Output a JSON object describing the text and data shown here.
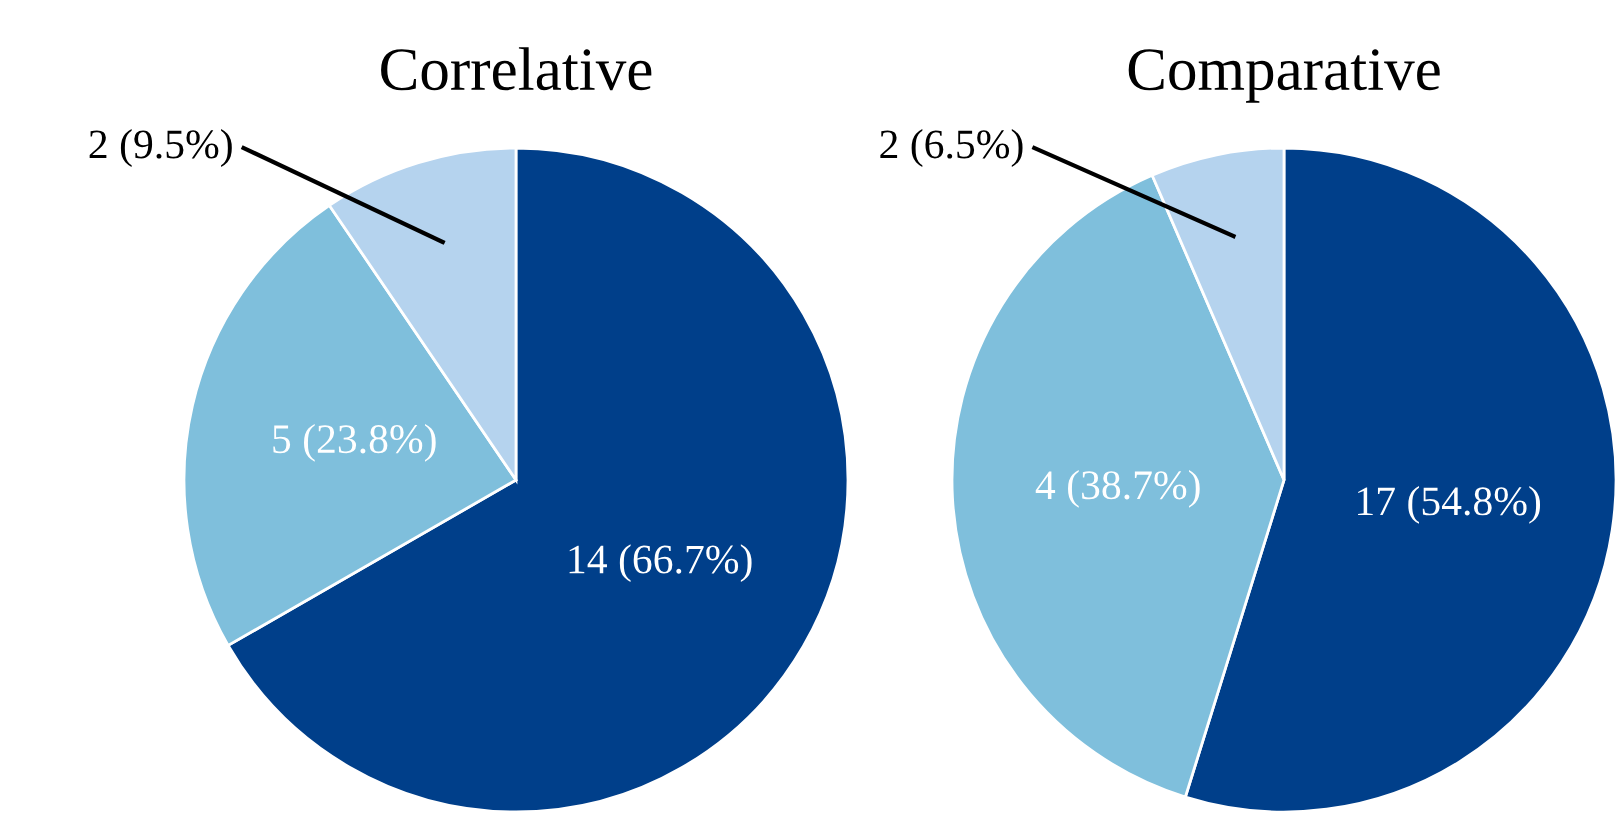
{
  "chart_data": [
    {
      "type": "pie",
      "title": "Correlative",
      "categories": [
        null,
        null,
        null
      ],
      "values": [
        66.7,
        23.8,
        9.5
      ],
      "colors": [
        "#003f8a",
        "#7fbfdc",
        "#b5d3ee"
      ],
      "value_labels": [
        "14 (66.7%)",
        "5 (23.8%)",
        "2 (9.5%)"
      ]
    },
    {
      "type": "pie",
      "title": "Comparative",
      "categories": [
        null,
        null,
        null
      ],
      "values": [
        54.8,
        38.7,
        6.5
      ],
      "colors": [
        "#003f8a",
        "#7fbfdc",
        "#b5d3ee"
      ],
      "value_labels": [
        "17 (54.8%)",
        "4 (38.7%)",
        "2 (6.5%)"
      ]
    }
  ]
}
